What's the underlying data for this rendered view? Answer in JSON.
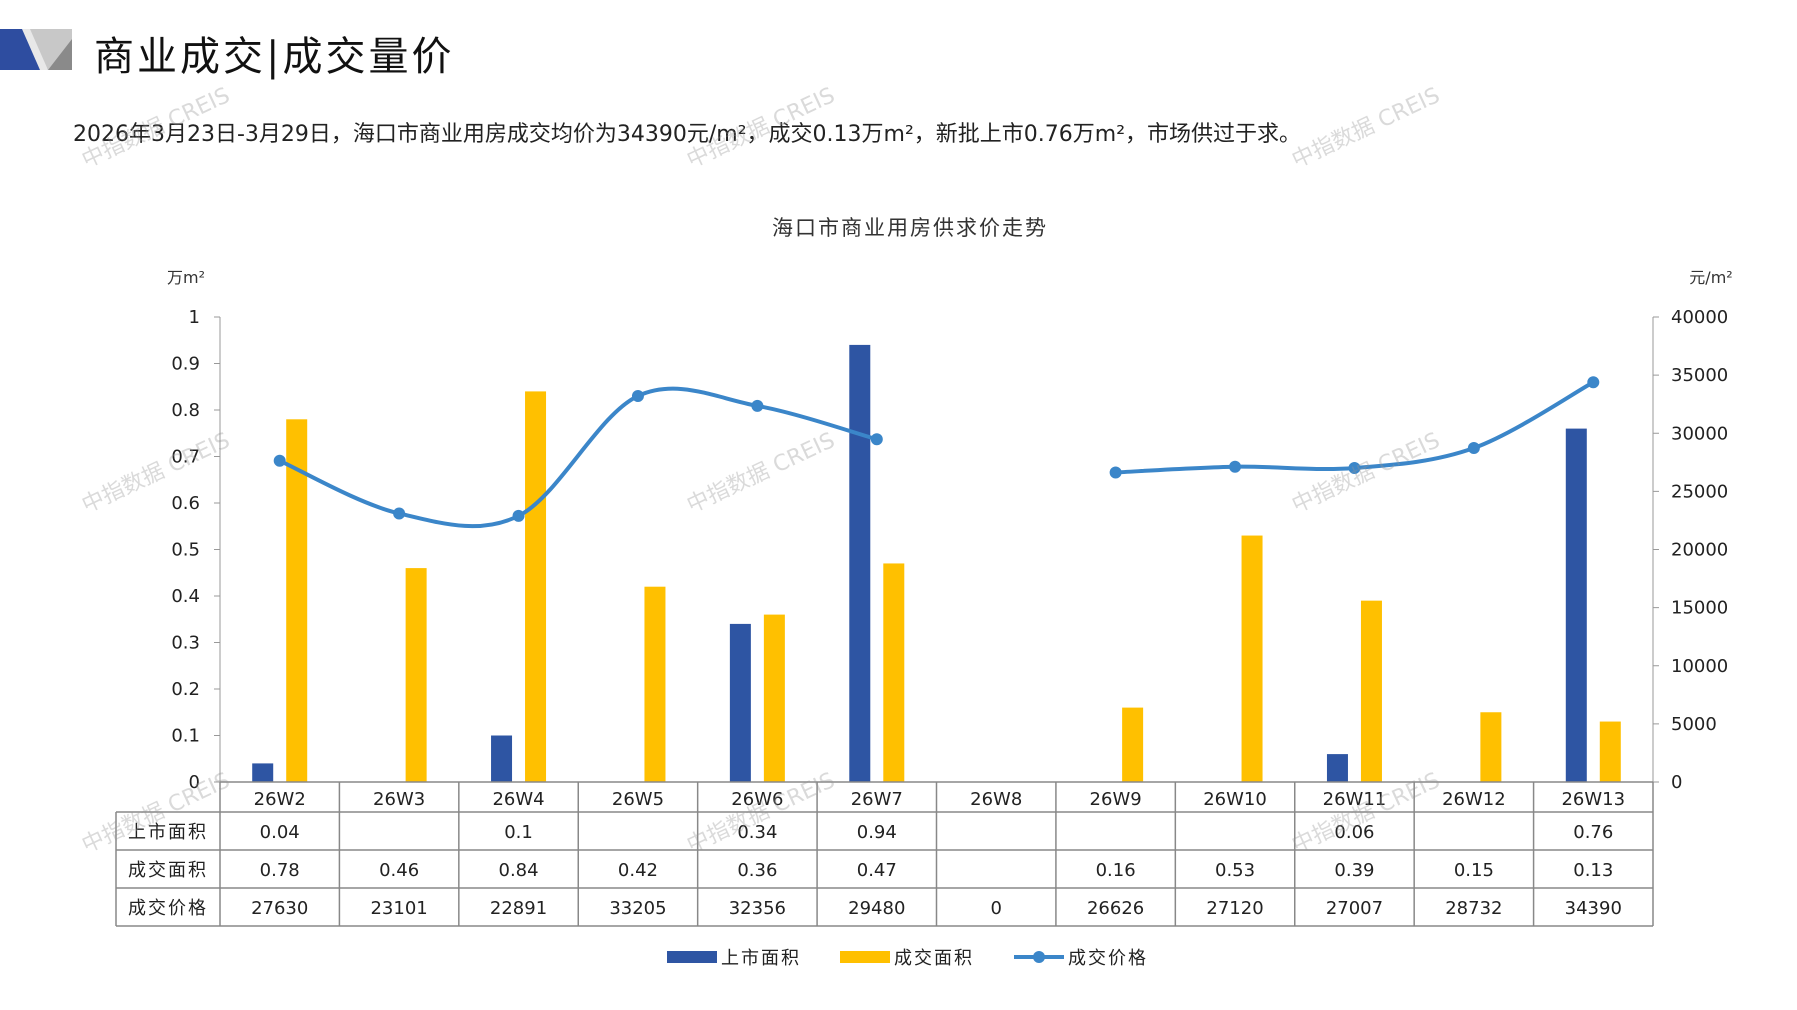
{
  "header": {
    "title": "商业成交|成交量价",
    "summary": "2026年3月23日-3月29日，海口市商业用房成交均价为34390元/m²，成交0.13万m²，新批上市0.76万m²，市场供过于求。"
  },
  "watermark": "中指数据 CREIS",
  "colors": {
    "listed": "#2e55a3",
    "sold": "#ffc000",
    "price": "#3b86c9"
  },
  "chart_data": {
    "type": "bar",
    "title": "海口市商业用房供求价走势",
    "ylabel": "万m²",
    "y2label": "元/m²",
    "ylim": [
      0,
      1
    ],
    "y2lim": [
      0,
      40000
    ],
    "yticks": [
      "0",
      "0.1",
      "0.2",
      "0.3",
      "0.4",
      "0.5",
      "0.6",
      "0.7",
      "0.8",
      "0.9",
      "1"
    ],
    "y2ticks": [
      "0",
      "5000",
      "10000",
      "15000",
      "20000",
      "25000",
      "30000",
      "35000",
      "40000"
    ],
    "categories": [
      "26W2",
      "26W3",
      "26W4",
      "26W5",
      "26W6",
      "26W7",
      "26W8",
      "26W9",
      "26W10",
      "26W11",
      "26W12",
      "26W13"
    ],
    "series": [
      {
        "name": "上市面积",
        "type": "bar",
        "axis": "left",
        "values": [
          0.04,
          null,
          0.1,
          null,
          0.34,
          0.94,
          null,
          null,
          null,
          0.06,
          null,
          0.76
        ]
      },
      {
        "name": "成交面积",
        "type": "bar",
        "axis": "left",
        "values": [
          0.78,
          0.46,
          0.84,
          0.42,
          0.36,
          0.47,
          null,
          0.16,
          0.53,
          0.39,
          0.15,
          0.13
        ]
      },
      {
        "name": "成交价格",
        "type": "line",
        "axis": "right",
        "values": [
          27630,
          23101,
          22891,
          33205,
          32356,
          29480,
          0,
          26626,
          27120,
          27007,
          28732,
          34390
        ]
      }
    ],
    "legend": "bottom"
  }
}
